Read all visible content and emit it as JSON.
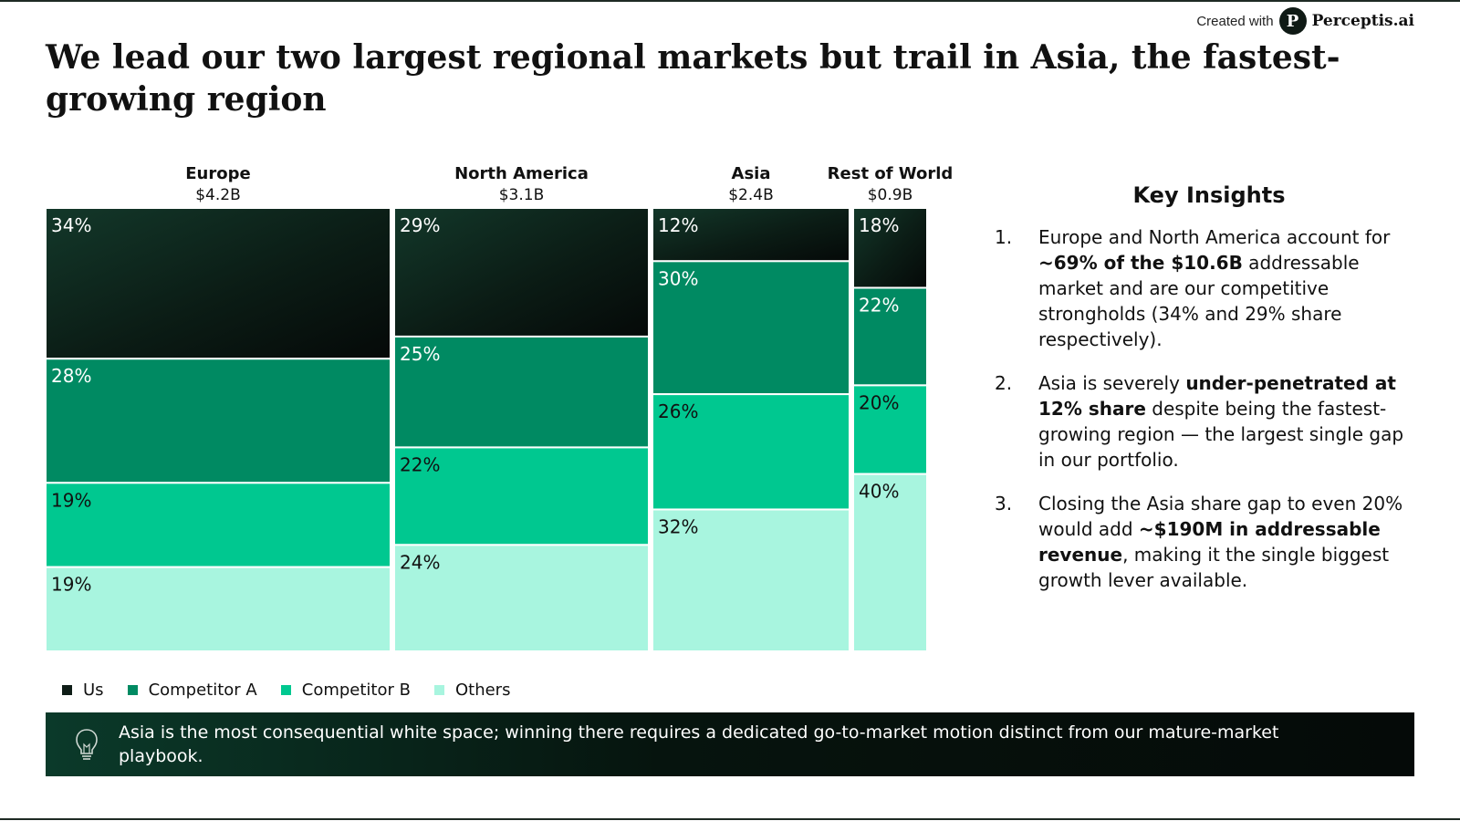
{
  "brand": {
    "prefix": "Created with",
    "logo_letter": "P",
    "name": "Perceptis.ai"
  },
  "title": "We lead our two largest regional markets but trail in Asia, the fastest-growing region",
  "colors": {
    "us": "#0f1d17",
    "competitor_a": "#008a62",
    "competitor_b": "#00c890",
    "others": "#a8f5df"
  },
  "chart_data": {
    "type": "marimekko",
    "unit_total": "$B",
    "segments_order": [
      "Us",
      "Competitor A",
      "Competitor B",
      "Others"
    ],
    "regions": [
      {
        "name": "Europe",
        "size_label": "$4.2B",
        "size": 4.2,
        "shares": [
          34,
          28,
          19,
          19
        ]
      },
      {
        "name": "North America",
        "size_label": "$3.1B",
        "size": 3.1,
        "shares": [
          29,
          25,
          22,
          24
        ]
      },
      {
        "name": "Asia",
        "size_label": "$2.4B",
        "size": 2.4,
        "shares": [
          12,
          30,
          26,
          32
        ]
      },
      {
        "name": "Rest of World",
        "size_label": "$0.9B",
        "size": 0.9,
        "shares": [
          18,
          22,
          20,
          40
        ]
      }
    ]
  },
  "legend": [
    {
      "label": "Us",
      "color": "#0f1d17"
    },
    {
      "label": "Competitor A",
      "color": "#008a62"
    },
    {
      "label": "Competitor B",
      "color": "#00c890"
    },
    {
      "label": "Others",
      "color": "#a8f5df"
    }
  ],
  "insights": {
    "heading": "Key Insights",
    "items": [
      {
        "num": "1.",
        "parts": [
          {
            "t": "Europe and North America account for ",
            "b": false
          },
          {
            "t": "~69% of the $10.6B",
            "b": true
          },
          {
            "t": " addressable market and are our competitive strongholds (34% and 29% share respectively).",
            "b": false
          }
        ]
      },
      {
        "num": "2.",
        "parts": [
          {
            "t": "Asia is severely ",
            "b": false
          },
          {
            "t": "under-penetrated at 12% share",
            "b": true
          },
          {
            "t": " despite being the fastest-growing region — the largest single gap in our portfolio.",
            "b": false
          }
        ]
      },
      {
        "num": "3.",
        "parts": [
          {
            "t": "Closing the Asia share gap to even 20% would add ",
            "b": false
          },
          {
            "t": "~$190M in addressable revenue",
            "b": true
          },
          {
            "t": ", making it the single biggest growth lever available.",
            "b": false
          }
        ]
      }
    ]
  },
  "callout": {
    "icon": "lightbulb-icon",
    "text": "Asia is the most consequential white space; winning there requires a dedicated go-to-market motion distinct from our mature-market playbook."
  }
}
